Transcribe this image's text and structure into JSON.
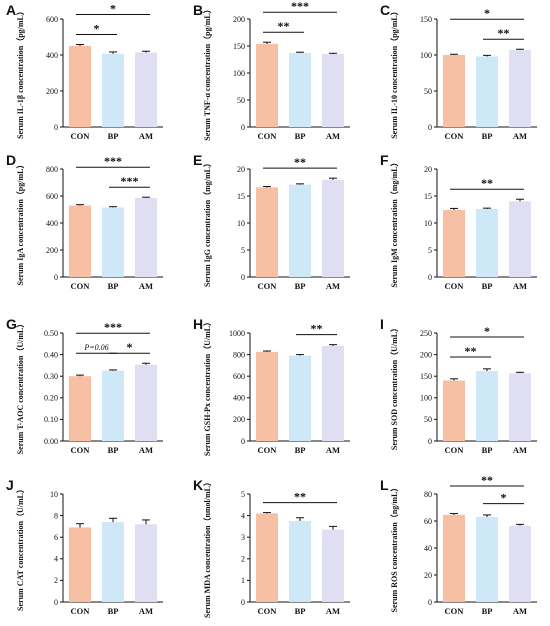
{
  "colors": {
    "CON": "#f7bfa3",
    "BP": "#cfe8f8",
    "AM": "#e0def3",
    "axis": "#111111",
    "error": "#111111"
  },
  "chart_data": [
    {
      "panel": "A",
      "type": "bar",
      "ylabel": "Serum IL-1β concentration（pg/mL）",
      "categories": [
        "CON",
        "BP",
        "AM"
      ],
      "values": [
        450,
        407,
        413
      ],
      "errors": [
        8,
        10,
        8
      ],
      "ylim": [
        0,
        600
      ],
      "yticks": [
        0,
        200,
        400,
        600
      ],
      "tick_labels": [
        "0",
        "200",
        "400",
        "600"
      ],
      "significance": [
        {
          "from": "CON",
          "to": "BP",
          "label": "*",
          "level": 1
        },
        {
          "from": "CON",
          "to": "AM",
          "label": "*",
          "level": 2
        }
      ]
    },
    {
      "panel": "B",
      "type": "bar",
      "ylabel": "Serum TNF-α concentration（pg/mL）",
      "categories": [
        "CON",
        "BP",
        "AM"
      ],
      "values": [
        154,
        137,
        135
      ],
      "errors": [
        3,
        1.5,
        1.5
      ],
      "ylim": [
        0,
        200
      ],
      "yticks": [
        0,
        50,
        100,
        150,
        200
      ],
      "tick_labels": [
        "0",
        "50",
        "100",
        "150",
        "200"
      ],
      "significance": [
        {
          "from": "CON",
          "to": "BP",
          "label": "**",
          "level": 1
        },
        {
          "from": "CON",
          "to": "AM",
          "label": "***",
          "level": 2
        }
      ]
    },
    {
      "panel": "C",
      "type": "bar",
      "ylabel": "Serum IL-10 concentration（pg/mL）",
      "categories": [
        "CON",
        "BP",
        "AM"
      ],
      "values": [
        100,
        98,
        107
      ],
      "errors": [
        1,
        1.5,
        1
      ],
      "ylim": [
        0,
        150
      ],
      "yticks": [
        0,
        50,
        100,
        150
      ],
      "tick_labels": [
        "0",
        "50",
        "100",
        "150"
      ],
      "significance": [
        {
          "from": "BP",
          "to": "AM",
          "label": "**",
          "level": 1
        },
        {
          "from": "CON",
          "to": "AM",
          "label": "*",
          "level": 2
        }
      ]
    },
    {
      "panel": "D",
      "type": "bar",
      "ylabel": "Serum IgA concentration（pg/mL）",
      "categories": [
        "CON",
        "BP",
        "AM"
      ],
      "values": [
        530,
        515,
        585
      ],
      "errors": [
        6,
        6,
        6
      ],
      "ylim": [
        0,
        800
      ],
      "yticks": [
        0,
        200,
        400,
        600,
        800
      ],
      "tick_labels": [
        "0",
        "200",
        "400",
        "600",
        "800"
      ],
      "significance": [
        {
          "from": "BP",
          "to": "AM",
          "label": "***",
          "level": 1
        },
        {
          "from": "CON",
          "to": "AM",
          "label": "***",
          "level": 2
        }
      ]
    },
    {
      "panel": "E",
      "type": "bar",
      "ylabel": "Serum IgG concentration（mg/mL）",
      "categories": [
        "CON",
        "BP",
        "AM"
      ],
      "values": [
        16.6,
        17.1,
        18
      ],
      "errors": [
        0.15,
        0.15,
        0.3
      ],
      "ylim": [
        0,
        20
      ],
      "yticks": [
        0,
        5,
        10,
        15,
        20
      ],
      "tick_labels": [
        "0",
        "5",
        "10",
        "15",
        "20"
      ],
      "significance": [
        {
          "from": "CON",
          "to": "AM",
          "label": "**",
          "level": 1
        }
      ]
    },
    {
      "panel": "F",
      "type": "bar",
      "ylabel": "Serum IgM concentration（mg/mL）",
      "categories": [
        "CON",
        "BP",
        "AM"
      ],
      "values": [
        12.4,
        12.6,
        14
      ],
      "errors": [
        0.3,
        0.15,
        0.4
      ],
      "ylim": [
        0,
        20
      ],
      "yticks": [
        0,
        5,
        10,
        15,
        20
      ],
      "tick_labels": [
        "0",
        "5",
        "10",
        "15",
        "20"
      ],
      "significance": [
        {
          "from": "CON",
          "to": "AM",
          "label": "**",
          "level": 1
        }
      ]
    },
    {
      "panel": "G",
      "type": "bar",
      "ylabel": "Serum T-AOC concentration（U/mL）",
      "categories": [
        "CON",
        "BP",
        "AM"
      ],
      "values": [
        0.3,
        0.325,
        0.353
      ],
      "errors": [
        0.005,
        0.004,
        0.007
      ],
      "ylim": [
        0,
        0.5
      ],
      "yticks": [
        0,
        0.1,
        0.2,
        0.3,
        0.4,
        0.5
      ],
      "tick_labels": [
        "0.00",
        "0.10",
        "0.20",
        "0.30",
        "0.40",
        "0.50"
      ],
      "significance": [
        {
          "from": "CON",
          "to": "BP",
          "label": "P=0.06",
          "level": 1,
          "italic_prefix": "P"
        },
        {
          "from": "BP",
          "to": "AM",
          "label": "*",
          "level": 1
        },
        {
          "from": "CON",
          "to": "AM",
          "label": "***",
          "level": 2
        }
      ]
    },
    {
      "panel": "H",
      "type": "bar",
      "ylabel": "Serum GSH-Px concentration（U/mL）",
      "categories": [
        "CON",
        "BP",
        "AM"
      ],
      "values": [
        825,
        790,
        880
      ],
      "errors": [
        8,
        10,
        12
      ],
      "ylim": [
        0,
        1000
      ],
      "yticks": [
        0,
        200,
        400,
        600,
        800,
        1000
      ],
      "tick_labels": [
        "0",
        "200",
        "400",
        "600",
        "800",
        "1000"
      ],
      "significance": [
        {
          "from": "BP",
          "to": "AM",
          "label": "**",
          "level": 1
        }
      ]
    },
    {
      "panel": "I",
      "type": "bar",
      "ylabel": "Serum SOD concentration（U/mL）",
      "categories": [
        "CON",
        "BP",
        "AM"
      ],
      "values": [
        140,
        162,
        157
      ],
      "errors": [
        4,
        5,
        2
      ],
      "ylim": [
        0,
        250
      ],
      "yticks": [
        0,
        50,
        100,
        150,
        200,
        250
      ],
      "tick_labels": [
        "0",
        "50",
        "100",
        "150",
        "200",
        "250"
      ],
      "significance": [
        {
          "from": "CON",
          "to": "BP",
          "label": "**",
          "level": 1
        },
        {
          "from": "CON",
          "to": "AM",
          "label": "*",
          "level": 2
        }
      ]
    },
    {
      "panel": "J",
      "type": "bar",
      "ylabel": "Serum CAT concentration（U/mL）",
      "categories": [
        "CON",
        "BP",
        "AM"
      ],
      "values": [
        6.9,
        7.4,
        7.2
      ],
      "errors": [
        0.35,
        0.35,
        0.4
      ],
      "ylim": [
        0,
        10
      ],
      "yticks": [
        0,
        2,
        4,
        6,
        8,
        10
      ],
      "tick_labels": [
        "0",
        "2",
        "4",
        "6",
        "8",
        "10"
      ],
      "significance": []
    },
    {
      "panel": "K",
      "type": "bar",
      "ylabel": "Serum MDA concentration（nmol/mL）",
      "categories": [
        "CON",
        "BP",
        "AM"
      ],
      "values": [
        4.1,
        3.75,
        3.35
      ],
      "errors": [
        0.04,
        0.15,
        0.15
      ],
      "ylim": [
        0,
        5
      ],
      "yticks": [
        0,
        1,
        2,
        3,
        4,
        5
      ],
      "tick_labels": [
        "0",
        "1",
        "2",
        "3",
        "4",
        "5"
      ],
      "significance": [
        {
          "from": "CON",
          "to": "AM",
          "label": "**",
          "level": 1
        }
      ]
    },
    {
      "panel": "L",
      "type": "bar",
      "ylabel": "Serum ROS concentration（ng/mL）",
      "categories": [
        "CON",
        "BP",
        "AM"
      ],
      "values": [
        64.5,
        63,
        56.5
      ],
      "errors": [
        1,
        1.5,
        1
      ],
      "ylim": [
        0,
        80
      ],
      "yticks": [
        0,
        20,
        40,
        60,
        80
      ],
      "tick_labels": [
        "0",
        "20",
        "40",
        "60",
        "80"
      ],
      "significance": [
        {
          "from": "BP",
          "to": "AM",
          "label": "*",
          "level": 1
        },
        {
          "from": "CON",
          "to": "AM",
          "label": "**",
          "level": 2
        }
      ]
    }
  ]
}
